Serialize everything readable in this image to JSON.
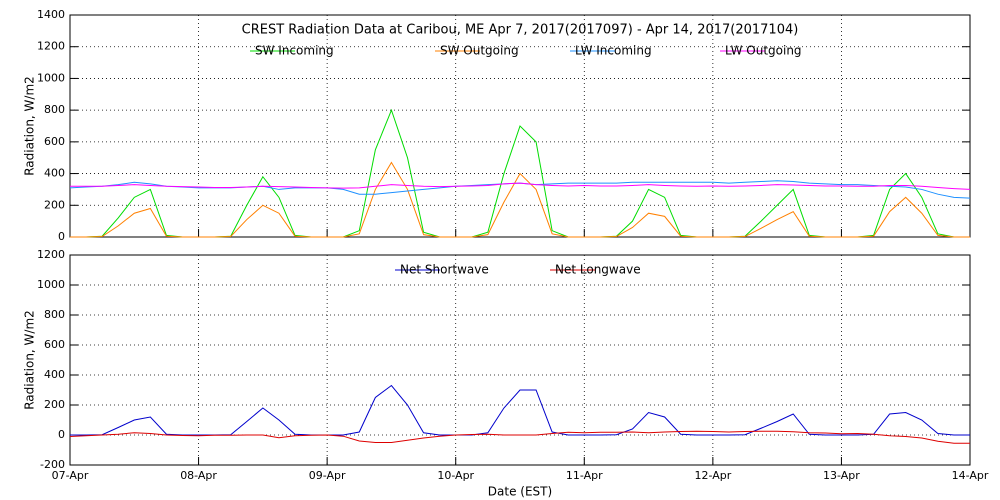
{
  "chart_data": [
    {
      "type": "line",
      "title": "CREST Radiation Data at Caribou, ME   Apr  7, 2017(2017097) - Apr 14, 2017(2017104)",
      "ylabel": "Radiation, W/m2",
      "x": [
        97,
        97.125,
        97.25,
        97.375,
        97.5,
        97.625,
        97.75,
        97.875,
        98,
        98.125,
        98.25,
        98.375,
        98.5,
        98.625,
        98.75,
        98.875,
        99,
        99.125,
        99.25,
        99.375,
        99.5,
        99.625,
        99.75,
        99.875,
        100,
        100.125,
        100.25,
        100.375,
        100.5,
        100.625,
        100.75,
        100.875,
        101,
        101.125,
        101.25,
        101.375,
        101.5,
        101.625,
        101.75,
        101.875,
        102,
        102.125,
        102.25,
        102.375,
        102.5,
        102.625,
        102.75,
        102.875,
        103,
        103.125,
        103.25,
        103.375,
        103.5,
        103.625,
        103.75,
        103.875,
        104
      ],
      "xlim": [
        97,
        104
      ],
      "xticks": [
        97,
        98,
        99,
        100,
        101,
        102,
        103,
        104
      ],
      "ylim": [
        0,
        1400
      ],
      "yticks": [
        0,
        200,
        400,
        600,
        800,
        1000,
        1200,
        1400
      ],
      "grid": true,
      "series": [
        {
          "name": "SW Incoming",
          "color": "#00dd00",
          "values": [
            0,
            0,
            5,
            120,
            250,
            300,
            10,
            0,
            0,
            0,
            5,
            200,
            380,
            250,
            10,
            0,
            0,
            0,
            40,
            550,
            800,
            500,
            30,
            0,
            0,
            0,
            30,
            400,
            700,
            600,
            40,
            0,
            0,
            0,
            5,
            100,
            300,
            250,
            10,
            0,
            0,
            0,
            5,
            100,
            200,
            300,
            10,
            0,
            0,
            0,
            10,
            300,
            400,
            250,
            20,
            0,
            0
          ]
        },
        {
          "name": "SW Outgoing",
          "color": "#ff8000",
          "values": [
            0,
            0,
            3,
            70,
            150,
            180,
            5,
            0,
            0,
            0,
            3,
            110,
            200,
            150,
            5,
            0,
            0,
            0,
            20,
            300,
            470,
            300,
            15,
            0,
            0,
            0,
            15,
            220,
            400,
            300,
            20,
            0,
            0,
            0,
            3,
            60,
            150,
            130,
            5,
            0,
            0,
            0,
            3,
            55,
            110,
            160,
            5,
            0,
            0,
            0,
            5,
            160,
            250,
            150,
            10,
            0,
            0
          ]
        },
        {
          "name": "LW Incoming",
          "color": "#1e90ff",
          "values": [
            310,
            315,
            320,
            330,
            345,
            335,
            320,
            315,
            310,
            310,
            310,
            315,
            320,
            300,
            310,
            310,
            310,
            300,
            270,
            270,
            280,
            290,
            300,
            310,
            320,
            325,
            330,
            335,
            340,
            330,
            335,
            340,
            340,
            340,
            340,
            345,
            345,
            345,
            345,
            345,
            345,
            340,
            345,
            350,
            355,
            350,
            340,
            335,
            330,
            330,
            325,
            320,
            315,
            300,
            270,
            250,
            245
          ]
        },
        {
          "name": "LW Outgoing",
          "color": "#ff00ff",
          "values": [
            320,
            320,
            320,
            325,
            330,
            325,
            320,
            318,
            315,
            312,
            312,
            315,
            320,
            318,
            315,
            312,
            310,
            308,
            310,
            320,
            330,
            325,
            320,
            318,
            320,
            322,
            325,
            335,
            340,
            330,
            325,
            322,
            325,
            322,
            322,
            325,
            330,
            325,
            322,
            320,
            322,
            320,
            322,
            325,
            330,
            328,
            325,
            322,
            322,
            320,
            320,
            325,
            325,
            320,
            312,
            305,
            300
          ]
        }
      ]
    },
    {
      "type": "line",
      "ylabel": "Radiation, W/m2",
      "xlabel": "Date (EST)",
      "x": [
        97,
        97.125,
        97.25,
        97.375,
        97.5,
        97.625,
        97.75,
        97.875,
        98,
        98.125,
        98.25,
        98.375,
        98.5,
        98.625,
        98.75,
        98.875,
        99,
        99.125,
        99.25,
        99.375,
        99.5,
        99.625,
        99.75,
        99.875,
        100,
        100.125,
        100.25,
        100.375,
        100.5,
        100.625,
        100.75,
        100.875,
        101,
        101.125,
        101.25,
        101.375,
        101.5,
        101.625,
        101.75,
        101.875,
        102,
        102.125,
        102.25,
        102.375,
        102.5,
        102.625,
        102.75,
        102.875,
        103,
        103.125,
        103.25,
        103.375,
        103.5,
        103.625,
        103.75,
        103.875,
        104
      ],
      "xlim": [
        97,
        104
      ],
      "xticks": [
        {
          "value": 97,
          "label": "07-Apr"
        },
        {
          "value": 98,
          "label": "08-Apr"
        },
        {
          "value": 99,
          "label": "09-Apr"
        },
        {
          "value": 100,
          "label": "10-Apr"
        },
        {
          "value": 101,
          "label": "11-Apr"
        },
        {
          "value": 102,
          "label": "12-Apr"
        },
        {
          "value": 103,
          "label": "13-Apr"
        },
        {
          "value": 104,
          "label": "14-Apr"
        }
      ],
      "ylim": [
        -200,
        1200
      ],
      "yticks": [
        -200,
        0,
        200,
        400,
        600,
        800,
        1000,
        1200
      ],
      "grid": true,
      "series": [
        {
          "name": "Net Shortwave",
          "color": "#0000cc",
          "values": [
            0,
            0,
            2,
            50,
            100,
            120,
            5,
            0,
            0,
            0,
            2,
            90,
            180,
            100,
            5,
            0,
            0,
            0,
            20,
            250,
            330,
            200,
            15,
            0,
            0,
            0,
            15,
            180,
            300,
            300,
            20,
            0,
            0,
            0,
            2,
            40,
            150,
            120,
            5,
            0,
            0,
            0,
            2,
            45,
            90,
            140,
            5,
            0,
            0,
            0,
            5,
            140,
            150,
            100,
            10,
            0,
            0
          ]
        },
        {
          "name": "Net Longwave",
          "color": "#dd0000",
          "values": [
            -10,
            -5,
            0,
            5,
            15,
            10,
            0,
            -3,
            -5,
            -2,
            -2,
            0,
            0,
            -18,
            -5,
            -2,
            0,
            -8,
            -40,
            -50,
            -50,
            -35,
            -20,
            -8,
            0,
            3,
            5,
            0,
            0,
            0,
            10,
            18,
            15,
            18,
            18,
            20,
            15,
            20,
            23,
            25,
            23,
            20,
            23,
            25,
            25,
            22,
            15,
            13,
            8,
            10,
            5,
            -5,
            -10,
            -20,
            -42,
            -55,
            -55
          ]
        }
      ]
    }
  ]
}
